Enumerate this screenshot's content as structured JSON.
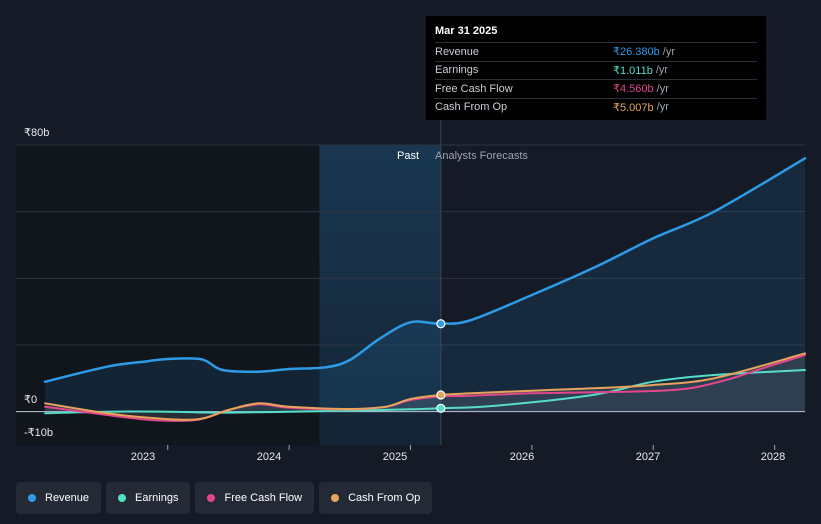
{
  "chart_data": {
    "type": "line",
    "y_unit": "₹ billions",
    "y_ticks": [
      {
        "value": 80,
        "label": "₹80b"
      },
      {
        "value": 0,
        "label": "₹0"
      },
      {
        "value": -10,
        "label": "-₹10b"
      }
    ],
    "x_ticks": [
      {
        "value": 2023,
        "label": "2023"
      },
      {
        "value": 2024,
        "label": "2024"
      },
      {
        "value": 2025,
        "label": "2025"
      },
      {
        "value": 2026,
        "label": "2026"
      },
      {
        "value": 2027,
        "label": "2027"
      },
      {
        "value": 2028,
        "label": "2028"
      }
    ],
    "xlim": [
      2021.75,
      2028.25
    ],
    "ylim": [
      -10,
      80
    ],
    "past_region_start": 2024.25,
    "divider_x": 2025.25,
    "past_label": "Past",
    "forecast_label": "Analysts Forecasts",
    "series": [
      {
        "name": "Revenue",
        "color": "#2d9be6",
        "x": [
          2021.99,
          2022.5,
          2022.8,
          2023.0,
          2023.28,
          2023.45,
          2023.75,
          2024.0,
          2024.3,
          2024.5,
          2024.75,
          2025.0,
          2025.25,
          2025.5,
          2026.0,
          2026.5,
          2027.0,
          2027.5,
          2028.25
        ],
        "y": [
          9,
          13.5,
          15,
          15.8,
          15.7,
          12.5,
          12,
          12.8,
          13.3,
          15.5,
          22,
          26.8,
          26.38,
          27.5,
          35,
          43,
          52,
          60,
          76
        ]
      },
      {
        "name": "Earnings",
        "color": "#56ddc9",
        "x": [
          2021.99,
          2022.5,
          2023.0,
          2023.4,
          2024.0,
          2024.5,
          2025.0,
          2025.25,
          2025.7,
          2026.5,
          2027.0,
          2027.5,
          2028.25
        ],
        "y": [
          -0.5,
          0,
          0,
          -0.3,
          0,
          0.3,
          0.7,
          1.011,
          1.8,
          5,
          9,
          11,
          12.5
        ]
      },
      {
        "name": "Free Cash Flow",
        "color": "#e2478b",
        "x": [
          2021.99,
          2022.5,
          2022.9,
          2023.25,
          2023.5,
          2023.75,
          2024.0,
          2024.5,
          2024.8,
          2025.0,
          2025.25,
          2025.5,
          2026.0,
          2026.5,
          2027.0,
          2027.3,
          2027.6,
          2027.9,
          2028.25
        ],
        "y": [
          1.5,
          -1,
          -2.6,
          -2.4,
          0.5,
          2.2,
          1.2,
          0.7,
          1.5,
          3.5,
          4.56,
          4.8,
          5.5,
          5.8,
          6.2,
          7,
          9.5,
          13,
          17
        ]
      },
      {
        "name": "Cash From Op",
        "color": "#e6a35a",
        "x": [
          2021.99,
          2022.5,
          2022.9,
          2023.25,
          2023.5,
          2023.75,
          2024.0,
          2024.5,
          2024.8,
          2025.0,
          2025.25,
          2025.5,
          2026.0,
          2026.5,
          2027.0,
          2027.5,
          2028.25
        ],
        "y": [
          2.5,
          -0.5,
          -2,
          -2.3,
          0.5,
          2.5,
          1.5,
          0.8,
          1.5,
          3.8,
          5.007,
          5.5,
          6.3,
          7,
          8,
          10,
          17.5
        ]
      }
    ]
  },
  "tooltip": {
    "date": "Mar 31 2025",
    "rows": [
      {
        "label": "Revenue",
        "value": "₹26.380b",
        "unit": "/yr",
        "color": "#2d9be6"
      },
      {
        "label": "Earnings",
        "value": "₹1.011b",
        "unit": "/yr",
        "color": "#56ddc9"
      },
      {
        "label": "Free Cash Flow",
        "value": "₹4.560b",
        "unit": "/yr",
        "color": "#e2478b"
      },
      {
        "label": "Cash From Op",
        "value": "₹5.007b",
        "unit": "/yr",
        "color": "#e6a35a"
      }
    ]
  },
  "legend": [
    {
      "label": "Revenue",
      "color": "#2d9be6"
    },
    {
      "label": "Earnings",
      "color": "#56ddc9"
    },
    {
      "label": "Free Cash Flow",
      "color": "#e2478b"
    },
    {
      "label": "Cash From Op",
      "color": "#e6a35a"
    }
  ]
}
